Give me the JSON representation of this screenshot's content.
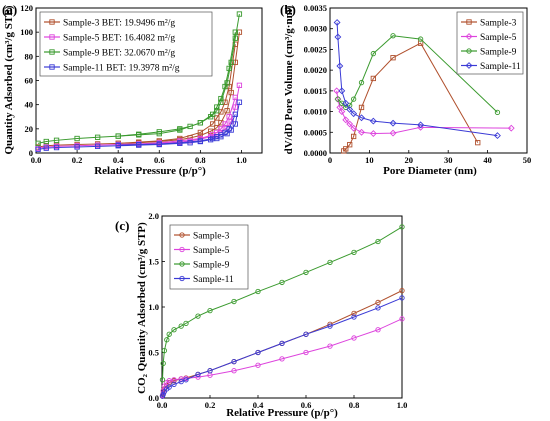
{
  "chart_data": [
    {
      "id": "a",
      "panel_label": "(a)",
      "type": "line",
      "xlabel": "Relative Pressure (p/p°)",
      "ylabel": "Quantity Adsorbed (cm³/g STP)",
      "xlim": [
        0,
        1.1
      ],
      "ylim": [
        0,
        120
      ],
      "xticks": [
        "0.0",
        "0.2",
        "0.4",
        "0.6",
        "0.8",
        "1.0"
      ],
      "yticks": [
        "0",
        "20",
        "40",
        "60",
        "80",
        "100",
        "120"
      ],
      "legend_position": "top-left",
      "marker": "square",
      "series": [
        {
          "name": "Sample-3 BET: 19.9496 m²/g",
          "color": "#b0502d",
          "x": [
            0.01,
            0.05,
            0.1,
            0.2,
            0.3,
            0.4,
            0.5,
            0.6,
            0.7,
            0.75,
            0.8,
            0.85,
            0.88,
            0.9,
            0.93,
            0.95,
            0.97,
            0.99
          ],
          "y": [
            5,
            6,
            6.5,
            7,
            7.5,
            8,
            8.5,
            9.5,
            11,
            12.5,
            14.5,
            18,
            21,
            25,
            35,
            50,
            75,
            100
          ],
          "x_desorption": [
            0.97,
            0.94,
            0.92,
            0.9,
            0.88,
            0.86,
            0.8,
            0.7,
            0.6,
            0.5,
            0.4
          ],
          "y_desorption": [
            90,
            55,
            42,
            34,
            29,
            24,
            17,
            12,
            10,
            9,
            8
          ]
        },
        {
          "name": "Sample-5 BET: 16.4082 m²/g",
          "color": "#dd44dd",
          "x": [
            0.01,
            0.05,
            0.1,
            0.2,
            0.3,
            0.4,
            0.5,
            0.6,
            0.7,
            0.75,
            0.8,
            0.85,
            0.88,
            0.9,
            0.93,
            0.95,
            0.97,
            0.99
          ],
          "y": [
            4,
            5,
            5.5,
            6,
            6.5,
            7,
            7.5,
            8,
            9,
            10,
            11.5,
            13.5,
            15,
            17,
            21,
            26,
            38,
            56
          ],
          "x_desorption": [
            0.97,
            0.94,
            0.92,
            0.9,
            0.88,
            0.86,
            0.8,
            0.7,
            0.6,
            0.5,
            0.4
          ],
          "y_desorption": [
            46,
            30,
            24,
            20,
            17,
            15,
            12,
            10,
            8.5,
            7.5,
            7
          ]
        },
        {
          "name": "Sample-9 BET: 32.0670 m²/g",
          "color": "#3a9a2e",
          "x": [
            0.01,
            0.05,
            0.1,
            0.2,
            0.3,
            0.4,
            0.5,
            0.6,
            0.7,
            0.75,
            0.8,
            0.85,
            0.88,
            0.9,
            0.93,
            0.95,
            0.97,
            0.99
          ],
          "y": [
            8,
            9.5,
            10.5,
            12,
            13,
            14,
            15.5,
            17.5,
            20,
            22,
            25,
            30,
            35,
            42,
            58,
            75,
            95,
            115
          ],
          "x_desorption": [
            0.97,
            0.94,
            0.92,
            0.9,
            0.88,
            0.86,
            0.8,
            0.7,
            0.6,
            0.5,
            0.4
          ],
          "y_desorption": [
            100,
            70,
            55,
            45,
            38,
            32,
            25,
            19,
            16,
            15,
            14
          ]
        },
        {
          "name": "Sample-11 BET: 19.3978 m²/g",
          "color": "#3b3bd6",
          "x": [
            0.01,
            0.05,
            0.1,
            0.2,
            0.3,
            0.4,
            0.5,
            0.6,
            0.7,
            0.75,
            0.8,
            0.85,
            0.88,
            0.9,
            0.93,
            0.95,
            0.97,
            0.99
          ],
          "y": [
            3,
            4,
            4.5,
            5,
            5.5,
            6,
            6.5,
            7,
            8,
            8.5,
            9.5,
            11,
            12,
            13.5,
            16,
            19,
            24,
            42
          ],
          "x_desorption": [
            0.97,
            0.94,
            0.92,
            0.9,
            0.88,
            0.86,
            0.8,
            0.7,
            0.6,
            0.5,
            0.4
          ],
          "y_desorption": [
            32,
            20,
            17,
            15,
            13.5,
            12,
            10,
            8.5,
            7.5,
            7,
            6.5
          ]
        }
      ]
    },
    {
      "id": "b",
      "panel_label": "(b)",
      "type": "line",
      "xlabel": "Pore Diameter (nm)",
      "ylabel": "dV/dD Pore Volume (cm³/g·nm)",
      "xlim": [
        0,
        50
      ],
      "ylim": [
        0,
        0.0035
      ],
      "xticks": [
        "0",
        "10",
        "20",
        "30",
        "40",
        "50"
      ],
      "yticks": [
        "0.0000",
        "0.0005",
        "0.0010",
        "0.0015",
        "0.0020",
        "0.0025",
        "0.0030",
        "0.0035"
      ],
      "legend_position": "top-right",
      "series": [
        {
          "name": "Sample-3",
          "color": "#b0502d",
          "marker": "square",
          "x": [
            3.5,
            4,
            5,
            6,
            8,
            11,
            16,
            23,
            37.5
          ],
          "y": [
            5e-05,
            0.0001,
            0.0002,
            0.0004,
            0.0011,
            0.0018,
            0.0023,
            0.00265,
            0.00025
          ]
        },
        {
          "name": "Sample-5",
          "color": "#dd44dd",
          "marker": "diamond",
          "x": [
            1.7,
            2,
            2.5,
            3,
            4,
            5,
            6,
            8,
            11,
            16,
            23,
            46
          ],
          "y": [
            0.0015,
            0.0013,
            0.0011,
            0.001,
            0.0008,
            0.0007,
            0.0006,
            0.0005,
            0.00047,
            0.00048,
            0.00062,
            0.0006
          ]
        },
        {
          "name": "Sample-9",
          "color": "#3a9a2e",
          "marker": "circle",
          "x": [
            2,
            3,
            4,
            5,
            6,
            8,
            11,
            16,
            23,
            42.5
          ],
          "y": [
            0.0013,
            0.0012,
            0.0011,
            0.00115,
            0.0013,
            0.0017,
            0.0024,
            0.00283,
            0.00275,
            0.00098
          ]
        },
        {
          "name": "Sample-11",
          "color": "#3b3bd6",
          "marker": "diamond",
          "x": [
            1.8,
            2,
            2.5,
            3,
            4,
            5,
            6,
            8,
            11,
            16,
            23,
            42.5
          ],
          "y": [
            0.00315,
            0.0028,
            0.0021,
            0.0015,
            0.0012,
            0.00105,
            0.00095,
            0.00085,
            0.00077,
            0.00072,
            0.00068,
            0.00042
          ]
        }
      ]
    },
    {
      "id": "c",
      "panel_label": "(c)",
      "type": "line",
      "xlabel": "Relative Pressure (p/p°)",
      "ylabel": "CO₂ Quantity Adsorbed (cm³/g STP)",
      "xlim": [
        0,
        1.0
      ],
      "ylim": [
        0,
        2.0
      ],
      "xticks": [
        "0.0",
        "0.2",
        "0.4",
        "0.6",
        "0.8",
        "1.0"
      ],
      "yticks": [
        "0.0",
        "0.5",
        "1.0",
        "1.5",
        "2.0"
      ],
      "legend_position": "top-left",
      "marker": "hollow",
      "series": [
        {
          "name": "Sample-3",
          "color": "#b0502d",
          "x": [
            0.002,
            0.005,
            0.01,
            0.02,
            0.03,
            0.05,
            0.08,
            0.1,
            0.15,
            0.2,
            0.3,
            0.4,
            0.5,
            0.6,
            0.7,
            0.8,
            0.9,
            1.0
          ],
          "y": [
            0.02,
            0.05,
            0.1,
            0.14,
            0.17,
            0.19,
            0.21,
            0.22,
            0.26,
            0.3,
            0.4,
            0.5,
            0.6,
            0.7,
            0.81,
            0.93,
            1.05,
            1.18
          ]
        },
        {
          "name": "Sample-5",
          "color": "#dd44dd",
          "x": [
            0.002,
            0.005,
            0.01,
            0.02,
            0.03,
            0.05,
            0.08,
            0.1,
            0.15,
            0.2,
            0.3,
            0.4,
            0.5,
            0.6,
            0.7,
            0.8,
            0.9,
            1.0
          ],
          "y": [
            0.03,
            0.08,
            0.13,
            0.17,
            0.19,
            0.2,
            0.21,
            0.215,
            0.23,
            0.25,
            0.3,
            0.36,
            0.43,
            0.5,
            0.57,
            0.66,
            0.75,
            0.87
          ]
        },
        {
          "name": "Sample-9",
          "color": "#3a9a2e",
          "x": [
            0.002,
            0.005,
            0.01,
            0.02,
            0.03,
            0.05,
            0.08,
            0.1,
            0.15,
            0.2,
            0.3,
            0.4,
            0.5,
            0.6,
            0.7,
            0.8,
            0.9,
            1.0
          ],
          "y": [
            0.2,
            0.38,
            0.52,
            0.64,
            0.7,
            0.75,
            0.79,
            0.82,
            0.9,
            0.96,
            1.06,
            1.17,
            1.27,
            1.38,
            1.49,
            1.6,
            1.72,
            1.88
          ]
        },
        {
          "name": "Sample-11",
          "color": "#3b3bd6",
          "x": [
            0.002,
            0.005,
            0.01,
            0.02,
            0.03,
            0.05,
            0.08,
            0.1,
            0.15,
            0.2,
            0.3,
            0.4,
            0.5,
            0.6,
            0.7,
            0.8,
            0.9,
            1.0
          ],
          "y": [
            0.02,
            0.04,
            0.07,
            0.1,
            0.12,
            0.15,
            0.18,
            0.2,
            0.26,
            0.3,
            0.4,
            0.5,
            0.6,
            0.7,
            0.79,
            0.89,
            0.99,
            1.1
          ]
        }
      ]
    }
  ]
}
